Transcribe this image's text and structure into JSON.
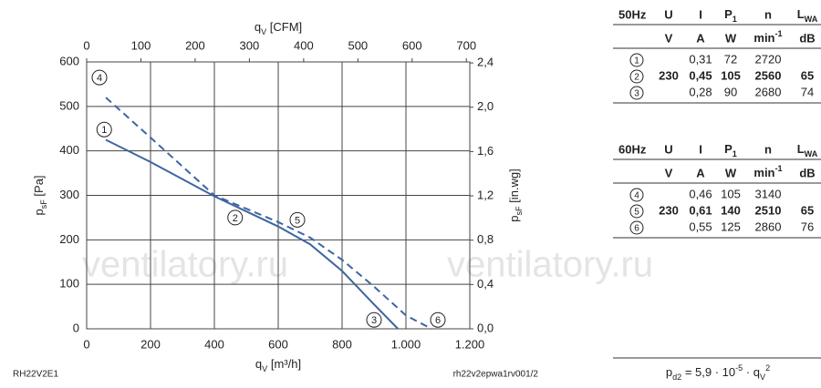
{
  "chart_data": {
    "type": "line",
    "x_label": [
      {
        "text": "q"
      },
      {
        "text": "V",
        "sub": true
      },
      {
        "text": " [m³/h]"
      }
    ],
    "x2_label": [
      {
        "text": "q"
      },
      {
        "text": "V",
        "sub": true
      },
      {
        "text": " [CFM]"
      }
    ],
    "y_label": [
      {
        "text": "p"
      },
      {
        "text": "sF",
        "sub": true
      },
      {
        "text": " [Pa]"
      }
    ],
    "y2_label": [
      {
        "text": "p"
      },
      {
        "text": "sF",
        "sub": true
      },
      {
        "text": " [in.wg]"
      }
    ],
    "xlim": [
      0,
      1200
    ],
    "xticks": [
      0,
      200,
      400,
      600,
      800,
      {
        "value": 1000,
        "label": "1.000"
      },
      {
        "value": 1200,
        "label": "1.200"
      }
    ],
    "x2lim": [
      0,
      706.3
    ],
    "x2ticks": [
      0,
      100,
      200,
      300,
      400,
      500,
      600,
      700
    ],
    "ylim": [
      0,
      600
    ],
    "yticks": [
      0,
      100,
      200,
      300,
      400,
      500,
      600
    ],
    "y2lim": [
      0,
      2.409
    ],
    "y2ticks": [
      {
        "value": 0,
        "label": "0,0"
      },
      {
        "value": 0.4,
        "label": "0,4"
      },
      {
        "value": 0.8,
        "label": "0,8"
      },
      {
        "value": 1.2,
        "label": "1,2"
      },
      {
        "value": 1.6,
        "label": "1,6"
      },
      {
        "value": 2.0,
        "label": "2,0"
      },
      {
        "value": 2.4,
        "label": "2,4"
      }
    ],
    "grid": true,
    "series": [
      {
        "color": "#3d65a0",
        "style": "solid",
        "x": [
          60,
          200,
          400,
          600,
          700,
          800,
          900,
          975
        ],
        "values": [
          425,
          375,
          298,
          230,
          190,
          130,
          55,
          0
        ]
      },
      {
        "color": "#3d65a0",
        "style": "dashed",
        "x": [
          60,
          200,
          400,
          600,
          700,
          800,
          900,
          1000,
          1080
        ],
        "values": [
          520,
          430,
          300,
          240,
          205,
          155,
          95,
          30,
          0
        ]
      }
    ],
    "annotations": [
      {
        "text": "4",
        "x": 40,
        "y": 565
      },
      {
        "text": "1",
        "x": 55,
        "y": 448
      },
      {
        "text": "2",
        "x": 465,
        "y": 250
      },
      {
        "text": "5",
        "x": 660,
        "y": 245
      },
      {
        "text": "3",
        "x": 900,
        "y": 20
      },
      {
        "text": "6",
        "x": 1100,
        "y": 20
      }
    ],
    "watermarks": [
      "ventilatory.ru",
      "ventilatory.ru"
    ],
    "footer_left": "RH22V2E1",
    "footer_right": "rh22v2epwa1rv001/2"
  },
  "tables": [
    {
      "header": [
        "50Hz",
        "U",
        "I",
        [
          {
            "text": "P"
          },
          {
            "text": "1",
            "sub": true
          }
        ],
        "n",
        [
          {
            "text": "L"
          },
          {
            "text": "WA",
            "sub": true
          }
        ]
      ],
      "units": [
        null,
        "V",
        "A",
        "W",
        [
          {
            "text": "min"
          },
          {
            "text": "-1",
            "sup": true
          }
        ],
        "dB"
      ],
      "rows": [
        {
          "cells": [
            "1",
            null,
            "0,31",
            "72",
            "2720",
            null
          ],
          "bold": false
        },
        {
          "cells": [
            "2",
            "230",
            "0,45",
            "105",
            "2560",
            "65"
          ],
          "bold": true
        },
        {
          "cells": [
            "3",
            null,
            "0,28",
            "90",
            "2680",
            "74"
          ],
          "bold": false
        }
      ]
    },
    {
      "header": [
        "60Hz",
        "U",
        "I",
        [
          {
            "text": "P"
          },
          {
            "text": "1",
            "sub": true
          }
        ],
        "n",
        [
          {
            "text": "L"
          },
          {
            "text": "WA",
            "sub": true
          }
        ]
      ],
      "units": [
        null,
        "V",
        "A",
        "W",
        [
          {
            "text": "min"
          },
          {
            "text": "-1",
            "sup": true
          }
        ],
        "dB"
      ],
      "rows": [
        {
          "cells": [
            "4",
            null,
            "0,46",
            "105",
            "3140",
            null
          ],
          "bold": false
        },
        {
          "cells": [
            "5",
            "230",
            "0,61",
            "140",
            "2510",
            "65"
          ],
          "bold": true
        },
        {
          "cells": [
            "6",
            null,
            "0,55",
            "125",
            "2860",
            "76"
          ],
          "bold": false
        }
      ]
    }
  ],
  "formula": [
    {
      "text": "p"
    },
    {
      "text": "d2",
      "sub": true
    },
    {
      "text": " =  5,9  · 10"
    },
    {
      "text": "-5",
      "sup": true
    },
    {
      "text": " · q"
    },
    {
      "text": "V",
      "sub": true
    },
    {
      "text": "2",
      "sup": true
    }
  ]
}
